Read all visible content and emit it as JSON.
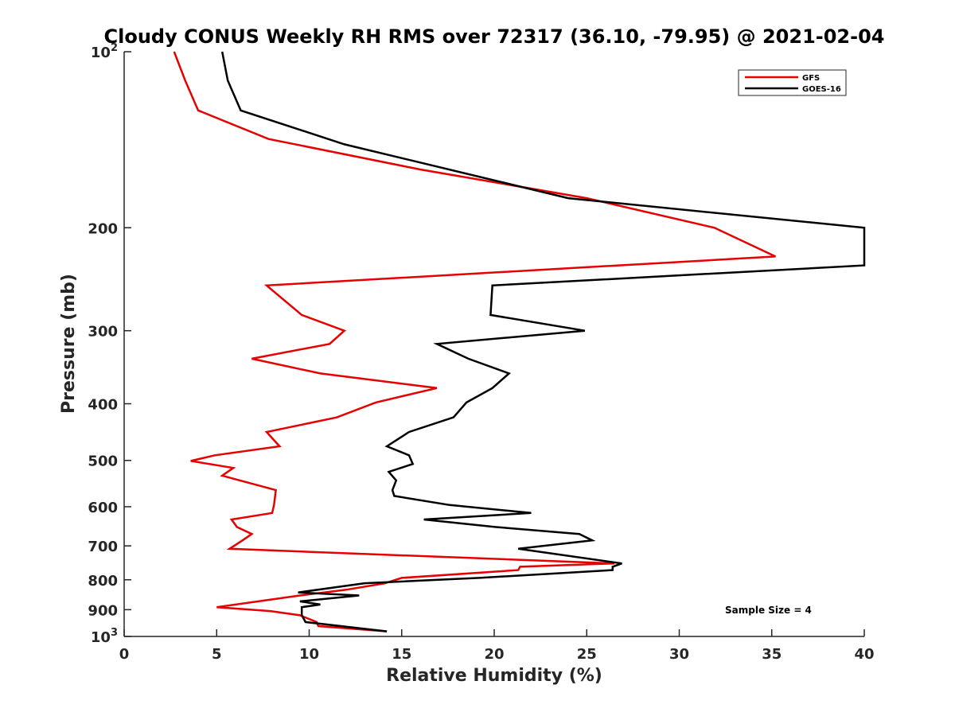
{
  "chart_data": {
    "type": "line",
    "title": "Cloudy CONUS Weekly RH RMS over 72317 (36.10, -79.95) @ 2021-02-04",
    "xlabel": "Relative Humidity (%)",
    "ylabel": "Pressure (mb)",
    "xlim": [
      0,
      40
    ],
    "ylim": [
      100,
      1000
    ],
    "yscale": "log",
    "y_reversed": true,
    "x_ticks": [
      0,
      5,
      10,
      15,
      20,
      25,
      30,
      35,
      40
    ],
    "x_tick_labels": [
      "0",
      "5",
      "10",
      "15",
      "20",
      "25",
      "30",
      "35",
      "40"
    ],
    "y_ticks": [
      100,
      200,
      300,
      400,
      500,
      600,
      700,
      800,
      900,
      1000
    ],
    "y_tick_labels": [
      {
        "base": "10",
        "sup": "2"
      },
      {
        "base": "200",
        "sup": ""
      },
      {
        "base": "300",
        "sup": ""
      },
      {
        "base": "400",
        "sup": ""
      },
      {
        "base": "500",
        "sup": ""
      },
      {
        "base": "600",
        "sup": ""
      },
      {
        "base": "700",
        "sup": ""
      },
      {
        "base": "800",
        "sup": ""
      },
      {
        "base": "900",
        "sup": ""
      },
      {
        "base": "10",
        "sup": "3"
      }
    ],
    "grid": false,
    "legend_position": "top-right",
    "annotation": "Sample Size = 4",
    "series": [
      {
        "name": "GFS",
        "color": "#e60000",
        "points": [
          [
            2.7,
            100
          ],
          [
            3.3,
            112
          ],
          [
            4.0,
            126
          ],
          [
            7.8,
            141
          ],
          [
            16.0,
            159
          ],
          [
            25.0,
            178
          ],
          [
            31.9,
            200
          ],
          [
            35.2,
            224
          ],
          [
            7.7,
            251
          ],
          [
            9.6,
            282
          ],
          [
            11.9,
            300
          ],
          [
            11.1,
            316
          ],
          [
            6.9,
            335
          ],
          [
            10.6,
            355
          ],
          [
            16.9,
            376
          ],
          [
            13.6,
            398
          ],
          [
            11.5,
            422
          ],
          [
            7.7,
            447
          ],
          [
            8.4,
            473
          ],
          [
            4.9,
            490
          ],
          [
            3.6,
            501
          ],
          [
            5.9,
            515
          ],
          [
            5.3,
            531
          ],
          [
            8.2,
            562
          ],
          [
            8.1,
            596
          ],
          [
            8.0,
            615
          ],
          [
            5.8,
            631
          ],
          [
            6.1,
            650
          ],
          [
            6.9,
            668
          ],
          [
            6.4,
            685
          ],
          [
            5.7,
            708
          ],
          [
            26.5,
            750
          ],
          [
            21.4,
            760
          ],
          [
            21.3,
            770
          ],
          [
            15.0,
            794
          ],
          [
            14.1,
            811
          ],
          [
            12.0,
            832
          ],
          [
            9.5,
            851
          ],
          [
            5.0,
            891
          ],
          [
            7.9,
            905
          ],
          [
            9.5,
            920
          ],
          [
            10.4,
            945
          ],
          [
            10.5,
            960
          ],
          [
            14.2,
            980
          ]
        ]
      },
      {
        "name": "GOES-16",
        "color": "#000000",
        "points": [
          [
            5.3,
            100
          ],
          [
            5.6,
            112
          ],
          [
            6.3,
            126
          ],
          [
            11.9,
            144
          ],
          [
            24.0,
            178
          ],
          [
            40.0,
            200
          ],
          [
            40.0,
            232
          ],
          [
            19.9,
            251
          ],
          [
            19.8,
            282
          ],
          [
            24.9,
            300
          ],
          [
            16.9,
            316
          ],
          [
            18.6,
            335
          ],
          [
            20.8,
            355
          ],
          [
            19.9,
            376
          ],
          [
            18.5,
            398
          ],
          [
            17.8,
            422
          ],
          [
            15.4,
            447
          ],
          [
            14.2,
            473
          ],
          [
            15.4,
            490
          ],
          [
            15.6,
            507
          ],
          [
            14.3,
            523
          ],
          [
            14.7,
            541
          ],
          [
            14.5,
            562
          ],
          [
            14.6,
            575
          ],
          [
            17.6,
            596
          ],
          [
            22.0,
            615
          ],
          [
            16.2,
            631
          ],
          [
            20.1,
            650
          ],
          [
            24.6,
            668
          ],
          [
            25.3,
            685
          ],
          [
            21.3,
            708
          ],
          [
            26.9,
            750
          ],
          [
            26.4,
            760
          ],
          [
            26.4,
            770
          ],
          [
            19.2,
            794
          ],
          [
            13.0,
            811
          ],
          [
            9.4,
            841
          ],
          [
            12.7,
            851
          ],
          [
            9.5,
            871
          ],
          [
            10.6,
            882
          ],
          [
            9.6,
            891
          ],
          [
            9.6,
            920
          ],
          [
            9.8,
            945
          ],
          [
            14.2,
            980
          ]
        ]
      }
    ]
  }
}
